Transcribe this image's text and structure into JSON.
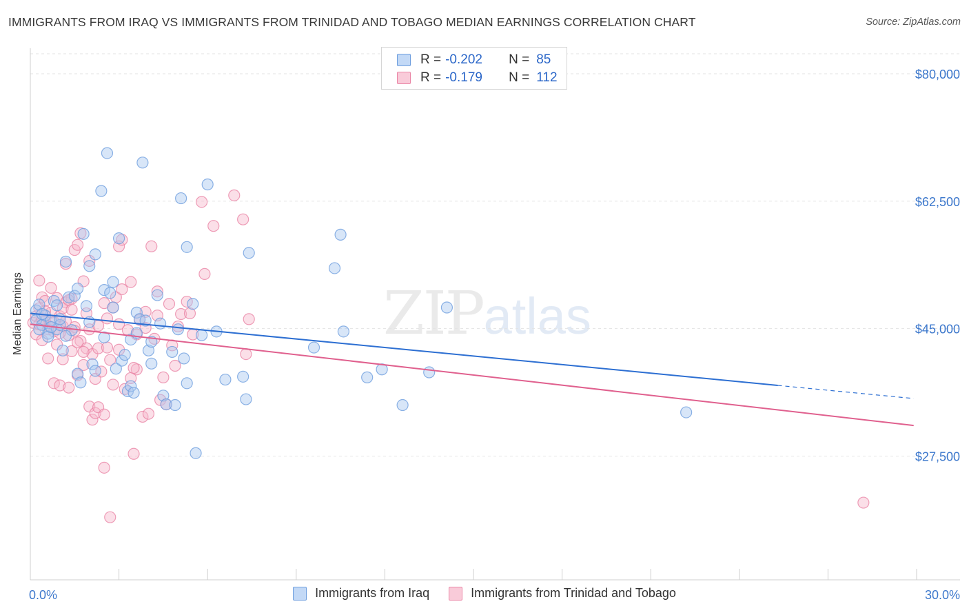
{
  "header": {
    "title": "IMMIGRANTS FROM IRAQ VS IMMIGRANTS FROM TRINIDAD AND TOBAGO MEDIAN EARNINGS CORRELATION CHART",
    "source": "Source: ZipAtlas.com"
  },
  "watermark": {
    "zip": "ZIP",
    "atlas": "atlas"
  },
  "legend": {
    "rows": [
      {
        "r_label": "R =",
        "r_value": "-0.202",
        "n_label": "N =",
        "n_value": "85"
      },
      {
        "r_label": "R =",
        "r_value": "-0.179",
        "n_label": "N =",
        "n_value": "112"
      }
    ]
  },
  "colors": {
    "iraq_fill": "#a9c8f0",
    "iraq_stroke": "#6f9fde",
    "iraq_line": "#2d6fd2",
    "tt_fill": "#f7b8cc",
    "tt_stroke": "#ea86a6",
    "tt_line": "#e0608e",
    "axis_label": "#3d78cc",
    "grid": "#e3e3e3"
  },
  "chart_data": {
    "type": "scatter",
    "title": "IMMIGRANTS FROM IRAQ VS IMMIGRANTS FROM TRINIDAD AND TOBAGO MEDIAN EARNINGS CORRELATION CHART",
    "ylabel": "Median Earnings",
    "xlabel": "",
    "xlim": [
      0,
      30
    ],
    "ylim": [
      10500,
      83500
    ],
    "x_tick_labels": [
      {
        "value": 0,
        "label": "0.0%"
      },
      {
        "value": 30,
        "label": "30.0%"
      }
    ],
    "y_tick_labels": [
      {
        "value": 27500,
        "label": "$27,500"
      },
      {
        "value": 45000,
        "label": "$45,000"
      },
      {
        "value": 62500,
        "label": "$62,500"
      },
      {
        "value": 80000,
        "label": "$80,000"
      }
    ],
    "grid": true,
    "legend_position": "top-center",
    "series": [
      {
        "name": "Immigrants from Iraq",
        "r": -0.202,
        "n": 85,
        "trend": {
          "x": [
            0,
            25.3
          ],
          "y": [
            47100,
            37200
          ],
          "dashed_to": {
            "x": 29.9,
            "y": 35400
          }
        },
        "points": [
          [
            0.2,
            47500
          ],
          [
            0.3,
            48300
          ],
          [
            0.2,
            46200
          ],
          [
            0.4,
            45500
          ],
          [
            0.3,
            44900
          ],
          [
            0.5,
            46800
          ],
          [
            0.6,
            44300
          ],
          [
            0.8,
            48800
          ],
          [
            0.7,
            46100
          ],
          [
            0.9,
            44900
          ],
          [
            1.0,
            45500
          ],
          [
            1.1,
            42000
          ],
          [
            1.2,
            54200
          ],
          [
            1.3,
            49300
          ],
          [
            1.5,
            49500
          ],
          [
            1.4,
            44800
          ],
          [
            1.6,
            38800
          ],
          [
            1.7,
            37600
          ],
          [
            1.8,
            58000
          ],
          [
            1.9,
            48100
          ],
          [
            2.0,
            53600
          ],
          [
            2.1,
            40100
          ],
          [
            2.2,
            39200
          ],
          [
            2.2,
            55200
          ],
          [
            2.4,
            63900
          ],
          [
            2.5,
            50300
          ],
          [
            2.5,
            43800
          ],
          [
            2.6,
            69100
          ],
          [
            2.7,
            49900
          ],
          [
            2.8,
            51400
          ],
          [
            2.8,
            47900
          ],
          [
            2.9,
            39500
          ],
          [
            3.0,
            57400
          ],
          [
            3.1,
            40600
          ],
          [
            3.3,
            36400
          ],
          [
            3.4,
            37100
          ],
          [
            3.4,
            43500
          ],
          [
            3.5,
            36200
          ],
          [
            3.6,
            47200
          ],
          [
            3.6,
            44400
          ],
          [
            3.7,
            46300
          ],
          [
            3.8,
            67800
          ],
          [
            3.9,
            46100
          ],
          [
            4.0,
            42000
          ],
          [
            4.1,
            43200
          ],
          [
            4.1,
            40200
          ],
          [
            4.3,
            49600
          ],
          [
            4.4,
            45700
          ],
          [
            4.5,
            35800
          ],
          [
            4.6,
            34600
          ],
          [
            4.8,
            41800
          ],
          [
            4.9,
            34500
          ],
          [
            5.0,
            44900
          ],
          [
            5.1,
            62900
          ],
          [
            5.2,
            40900
          ],
          [
            5.3,
            56200
          ],
          [
            5.3,
            37500
          ],
          [
            5.5,
            48400
          ],
          [
            5.6,
            27900
          ],
          [
            5.8,
            44100
          ],
          [
            6.0,
            64800
          ],
          [
            6.3,
            44600
          ],
          [
            6.6,
            38000
          ],
          [
            7.2,
            38400
          ],
          [
            7.3,
            35300
          ],
          [
            7.4,
            55400
          ],
          [
            9.6,
            42400
          ],
          [
            10.3,
            53300
          ],
          [
            10.6,
            44600
          ],
          [
            10.5,
            57900
          ],
          [
            11.4,
            38300
          ],
          [
            11.9,
            39400
          ],
          [
            12.6,
            34500
          ],
          [
            13.5,
            39000
          ],
          [
            14.1,
            47900
          ],
          [
            22.2,
            33500
          ],
          [
            0.6,
            43900
          ],
          [
            0.9,
            48200
          ],
          [
            1.2,
            44000
          ],
          [
            1.6,
            50500
          ],
          [
            0.4,
            47000
          ],
          [
            0.7,
            45200
          ],
          [
            1.0,
            46300
          ],
          [
            2.0,
            45900
          ],
          [
            3.2,
            41400
          ]
        ]
      },
      {
        "name": "Immigrants from Trinidad and Tobago",
        "r": -0.179,
        "n": 112,
        "trend": {
          "x": [
            0,
            29.9
          ],
          "y": [
            45600,
            31700
          ]
        },
        "points": [
          [
            0.1,
            45800
          ],
          [
            0.2,
            46700
          ],
          [
            0.2,
            44200
          ],
          [
            0.3,
            51600
          ],
          [
            0.3,
            47800
          ],
          [
            0.4,
            43400
          ],
          [
            0.4,
            49300
          ],
          [
            0.5,
            46100
          ],
          [
            0.5,
            48800
          ],
          [
            0.6,
            45400
          ],
          [
            0.6,
            40900
          ],
          [
            0.7,
            47200
          ],
          [
            0.7,
            50600
          ],
          [
            0.8,
            44600
          ],
          [
            0.8,
            37500
          ],
          [
            0.9,
            49200
          ],
          [
            0.9,
            42800
          ],
          [
            1.0,
            46700
          ],
          [
            1.0,
            37200
          ],
          [
            1.1,
            45300
          ],
          [
            1.1,
            40800
          ],
          [
            1.2,
            48600
          ],
          [
            1.2,
            53900
          ],
          [
            1.3,
            44100
          ],
          [
            1.3,
            36900
          ],
          [
            1.4,
            41900
          ],
          [
            1.4,
            49100
          ],
          [
            1.5,
            45200
          ],
          [
            1.5,
            55800
          ],
          [
            1.6,
            38600
          ],
          [
            1.6,
            56500
          ],
          [
            1.7,
            43300
          ],
          [
            1.7,
            58100
          ],
          [
            1.8,
            51500
          ],
          [
            1.8,
            40000
          ],
          [
            1.9,
            47100
          ],
          [
            1.9,
            42300
          ],
          [
            2.0,
            54300
          ],
          [
            2.0,
            34300
          ],
          [
            2.1,
            41500
          ],
          [
            2.1,
            32500
          ],
          [
            2.2,
            38100
          ],
          [
            2.2,
            33400
          ],
          [
            2.3,
            42300
          ],
          [
            2.3,
            34200
          ],
          [
            2.4,
            39100
          ],
          [
            2.5,
            48500
          ],
          [
            2.5,
            33200
          ],
          [
            2.5,
            25900
          ],
          [
            2.6,
            42400
          ],
          [
            2.7,
            40700
          ],
          [
            2.7,
            19100
          ],
          [
            2.8,
            37300
          ],
          [
            2.8,
            47900
          ],
          [
            2.9,
            49300
          ],
          [
            3.0,
            42100
          ],
          [
            3.0,
            56300
          ],
          [
            3.1,
            57200
          ],
          [
            3.1,
            50400
          ],
          [
            3.2,
            36700
          ],
          [
            3.3,
            44800
          ],
          [
            3.4,
            51400
          ],
          [
            3.4,
            38200
          ],
          [
            3.5,
            27800
          ],
          [
            3.6,
            44200
          ],
          [
            3.6,
            39400
          ],
          [
            3.7,
            46200
          ],
          [
            3.8,
            32900
          ],
          [
            3.9,
            45100
          ],
          [
            3.9,
            47300
          ],
          [
            4.0,
            33300
          ],
          [
            4.1,
            56300
          ],
          [
            4.2,
            43600
          ],
          [
            4.3,
            46800
          ],
          [
            4.3,
            50100
          ],
          [
            4.4,
            35200
          ],
          [
            4.5,
            38300
          ],
          [
            4.6,
            34600
          ],
          [
            4.7,
            48400
          ],
          [
            4.8,
            42700
          ],
          [
            4.9,
            39900
          ],
          [
            5.0,
            45300
          ],
          [
            5.1,
            47000
          ],
          [
            5.3,
            48700
          ],
          [
            5.4,
            47100
          ],
          [
            5.5,
            44200
          ],
          [
            5.8,
            62400
          ],
          [
            5.9,
            52500
          ],
          [
            6.2,
            59100
          ],
          [
            6.9,
            63300
          ],
          [
            7.2,
            60000
          ],
          [
            7.3,
            41500
          ],
          [
            7.4,
            46300
          ],
          [
            0.3,
            45600
          ],
          [
            0.4,
            46300
          ],
          [
            0.5,
            47400
          ],
          [
            0.6,
            44900
          ],
          [
            0.8,
            45900
          ],
          [
            1.0,
            44400
          ],
          [
            1.1,
            47800
          ],
          [
            1.2,
            46000
          ],
          [
            1.3,
            48900
          ],
          [
            1.4,
            47600
          ],
          [
            1.5,
            44700
          ],
          [
            1.6,
            43100
          ],
          [
            1.8,
            41800
          ],
          [
            2.0,
            44900
          ],
          [
            2.3,
            45400
          ],
          [
            2.6,
            46400
          ],
          [
            3.0,
            45600
          ],
          [
            3.5,
            39600
          ],
          [
            28.2,
            21100
          ]
        ]
      }
    ]
  },
  "bottom_legend": {
    "items": [
      {
        "label": "Immigrants from Iraq"
      },
      {
        "label": "Immigrants from Trinidad and Tobago"
      }
    ]
  }
}
